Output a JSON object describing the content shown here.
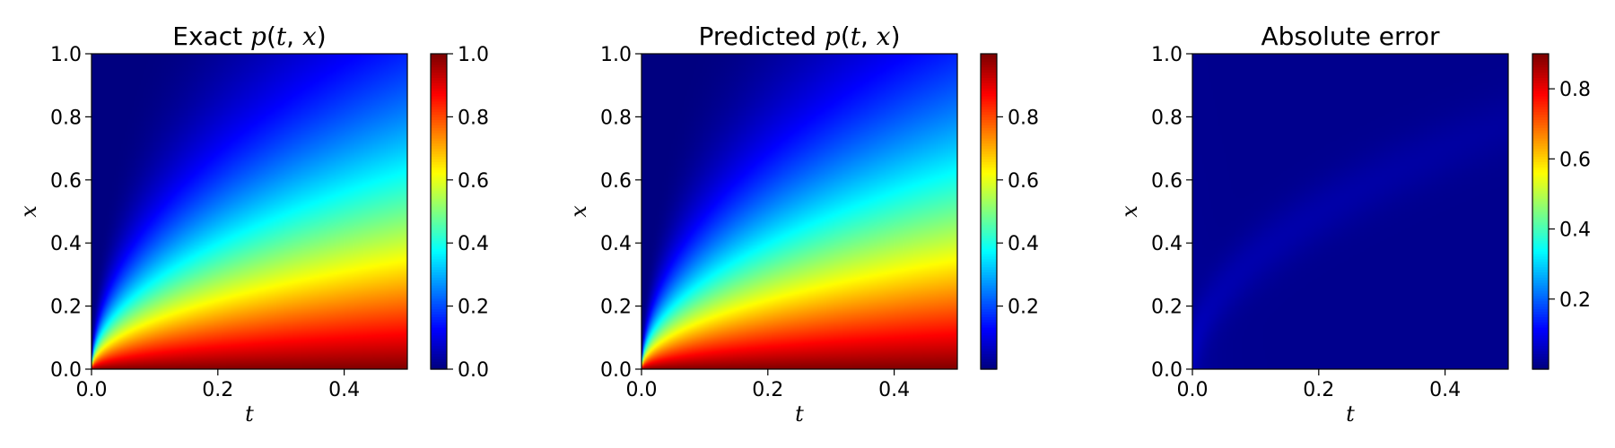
{
  "chart_data": [
    {
      "type": "heatmap",
      "title": "Exact p(t, x)",
      "xlabel": "t",
      "ylabel": "x",
      "xlim": [
        0,
        0.5
      ],
      "ylim": [
        0,
        1
      ],
      "xticks": [
        "0.0",
        "0.2",
        "0.4"
      ],
      "yticks": [
        "0.0",
        "0.2",
        "0.4",
        "0.6",
        "0.8",
        "1.0"
      ],
      "colormap": "jet",
      "clim": [
        0,
        1
      ],
      "colorbar_ticks": [
        "0.0",
        "0.2",
        "0.4",
        "0.6",
        "0.8",
        "1.0"
      ],
      "field": "exact",
      "field_samples": {
        "t": [
          0.1,
          0.3,
          0.5
        ],
        "x": [
          0.0,
          0.2,
          0.4,
          0.6,
          0.8,
          1.0
        ],
        "values": [
          [
            1.0,
            0.6,
            0.3,
            0.12,
            0.03,
            0.0
          ],
          [
            1.0,
            0.8,
            0.55,
            0.35,
            0.17,
            0.05
          ],
          [
            1.0,
            0.85,
            0.65,
            0.45,
            0.28,
            0.12
          ]
        ]
      }
    },
    {
      "type": "heatmap",
      "title": "Predicted p(t, x)",
      "xlabel": "t",
      "ylabel": "x",
      "xlim": [
        0,
        0.5
      ],
      "ylim": [
        0,
        1
      ],
      "xticks": [
        "0.0",
        "0.2",
        "0.4"
      ],
      "yticks": [
        "0.0",
        "0.2",
        "0.4",
        "0.6",
        "0.8",
        "1.0"
      ],
      "colormap": "jet",
      "clim": [
        0,
        1
      ],
      "colorbar_ticks": [
        "0.2",
        "0.4",
        "0.6",
        "0.8"
      ],
      "field": "predicted",
      "field_samples": {
        "t": [
          0.1,
          0.3,
          0.5
        ],
        "x": [
          0.0,
          0.2,
          0.4,
          0.6,
          0.8,
          1.0
        ],
        "values": [
          [
            0.99,
            0.6,
            0.3,
            0.12,
            0.03,
            0.0
          ],
          [
            0.99,
            0.8,
            0.55,
            0.35,
            0.17,
            0.05
          ],
          [
            0.99,
            0.85,
            0.65,
            0.45,
            0.28,
            0.12
          ]
        ]
      }
    },
    {
      "type": "heatmap",
      "title": "Absolute error",
      "xlabel": "t",
      "ylabel": "x",
      "xlim": [
        0,
        0.5
      ],
      "ylim": [
        0,
        1
      ],
      "xticks": [
        "0.0",
        "0.2",
        "0.4"
      ],
      "yticks": [
        "0.0",
        "0.2",
        "0.4",
        "0.6",
        "0.8",
        "1.0"
      ],
      "colormap": "jet",
      "clim": [
        0,
        0.9
      ],
      "colorbar_ticks": [
        "0.2",
        "0.4",
        "0.6",
        "0.8"
      ],
      "field": "error",
      "field_samples": {
        "t": [
          0.0,
          0.1,
          0.3,
          0.5
        ],
        "x": [
          0.0,
          0.5,
          1.0
        ],
        "values": [
          [
            0.05,
            0.0,
            0.0
          ],
          [
            0.04,
            0.01,
            0.0
          ],
          [
            0.02,
            0.01,
            0.0
          ],
          [
            0.01,
            0.0,
            0.0
          ]
        ]
      }
    }
  ]
}
